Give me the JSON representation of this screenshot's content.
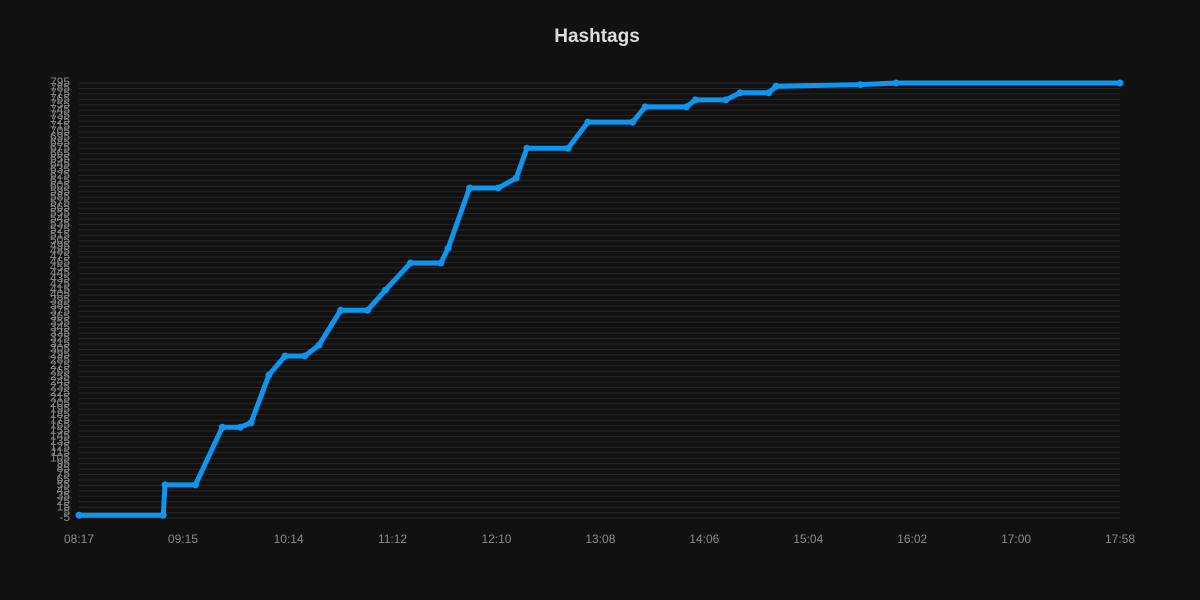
{
  "chart_data": {
    "type": "line",
    "title": "Hashtags",
    "x": [
      "08:17",
      "09:04",
      "09:05",
      "09:22",
      "09:37",
      "09:47",
      "09:53",
      "10:03",
      "10:12",
      "10:23",
      "10:31",
      "10:43",
      "10:58",
      "11:08",
      "11:22",
      "11:39",
      "11:43",
      "11:55",
      "12:11",
      "12:21",
      "12:27",
      "12:50",
      "13:01",
      "13:26",
      "13:33",
      "13:56",
      "14:01",
      "14:18",
      "14:26",
      "14:42",
      "14:46",
      "15:33",
      "15:53",
      "17:58"
    ],
    "series": [
      {
        "name": "Hashtags",
        "color": "#0c96f0",
        "values": [
          0,
          0,
          56,
          56,
          162,
          162,
          170,
          258,
          293,
          293,
          313,
          377,
          377,
          414,
          464,
          464,
          491,
          602,
          602,
          620,
          675,
          675,
          723,
          723,
          751,
          751,
          764,
          764,
          777,
          777,
          789,
          792,
          795,
          795
        ]
      }
    ],
    "xlim": [
      "08:17",
      "17:58"
    ],
    "xticks": [
      "08:17",
      "09:15",
      "10:14",
      "11:12",
      "12:10",
      "13:08",
      "14:06",
      "15:04",
      "16:02",
      "17:00",
      "17:58"
    ],
    "ylim": [
      -5,
      795
    ],
    "yticks": [
      -5,
      5,
      15,
      25,
      35,
      45,
      55,
      65,
      75,
      85,
      95,
      105,
      115,
      125,
      135,
      145,
      155,
      165,
      175,
      185,
      195,
      205,
      215,
      225,
      235,
      245,
      255,
      265,
      275,
      285,
      295,
      305,
      315,
      325,
      335,
      345,
      355,
      365,
      375,
      385,
      395,
      405,
      415,
      425,
      435,
      445,
      455,
      465,
      475,
      485,
      495,
      505,
      515,
      525,
      535,
      545,
      555,
      565,
      575,
      585,
      595,
      605,
      615,
      625,
      635,
      645,
      655,
      665,
      675,
      685,
      695,
      705,
      715,
      725,
      735,
      745,
      755,
      765,
      775,
      785,
      795
    ],
    "grid": true
  }
}
